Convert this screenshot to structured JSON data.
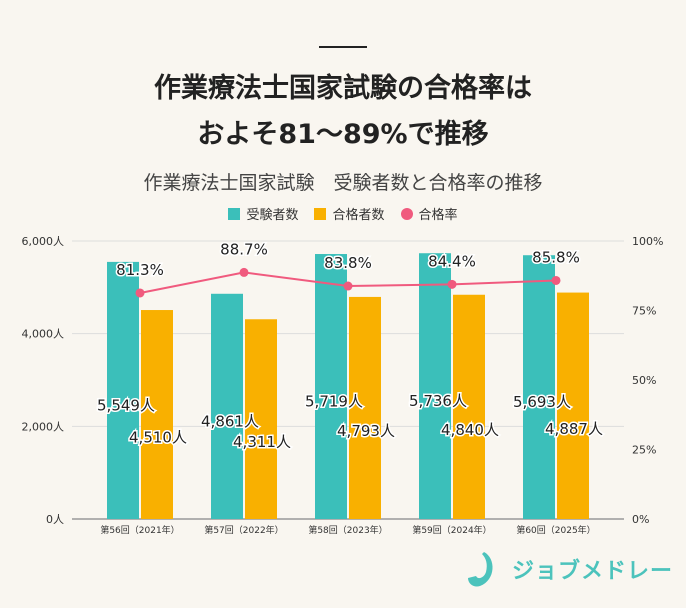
{
  "headline": {
    "line1": "作業療法士国家試験の合格率は",
    "line2": "およそ81～89%で推移"
  },
  "chart_data": {
    "type": "bar+line",
    "title": "作業療法士国家試験　受験者数と合格率の推移",
    "categories": [
      "第56回（2021年）",
      "第57回（2022年）",
      "第58回（2023年）",
      "第59回（2024年）",
      "第60回（2025年）"
    ],
    "series": [
      {
        "name": "受験者数",
        "type": "bar",
        "axis": "left",
        "color": "#3bbfba",
        "values": [
          5549,
          4861,
          5719,
          5736,
          5693
        ],
        "labels": [
          "5,549人",
          "4,861人",
          "5,719人",
          "5,736人",
          "5,693人"
        ]
      },
      {
        "name": "合格者数",
        "type": "bar",
        "axis": "left",
        "color": "#f9b000",
        "values": [
          4510,
          4311,
          4793,
          4840,
          4887
        ],
        "labels": [
          "4,510人",
          "4,311人",
          "4,793人",
          "4,840人",
          "4,887人"
        ]
      },
      {
        "name": "合格率",
        "type": "line",
        "axis": "right",
        "color": "#f05a7e",
        "values": [
          81.3,
          88.7,
          83.8,
          84.4,
          85.8
        ],
        "labels": [
          "81.3%",
          "88.7%",
          "83.8%",
          "84.4%",
          "85.8%"
        ]
      }
    ],
    "y_left": {
      "range": [
        0,
        6000
      ],
      "ticks": [
        "0人",
        "2,000人",
        "4,000人",
        "6,000人"
      ]
    },
    "y_right": {
      "range": [
        0,
        100
      ],
      "ticks": [
        "0%",
        "25%",
        "50%",
        "75%",
        "100%"
      ]
    },
    "grid": true,
    "legend": "top-center"
  },
  "brand": {
    "name": "ジョブメドレー",
    "color": "#4cc3bc"
  }
}
